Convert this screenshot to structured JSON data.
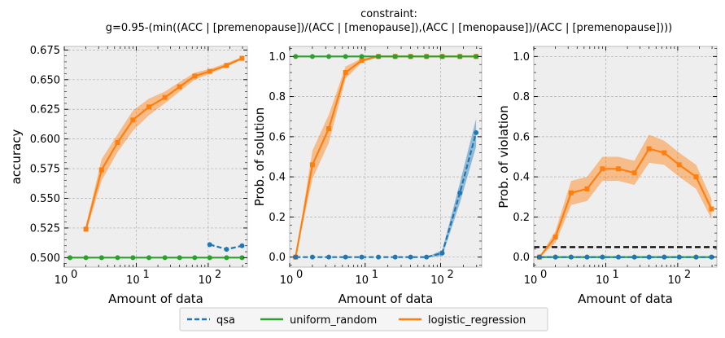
{
  "title_lines": [
    "constraint:",
    "g=0.95-(min((ACC | [premenopause])/(ACC | [menopause]),(ACC | [menopause])/(ACC | [premenopause])))"
  ],
  "colors": {
    "qsa": "#1f77b4",
    "uniform_random": "#2ca02c",
    "logistic_regression": "#ff7f0e",
    "axes_bg": "#eeeeee",
    "grid": "#b0b0b0",
    "threshold": "#000000"
  },
  "legend": [
    {
      "key": "qsa",
      "label": "qsa",
      "style": "dashed"
    },
    {
      "key": "uniform_random",
      "label": "uniform_random",
      "style": "solid"
    },
    {
      "key": "logistic_regression",
      "label": "logistic_regression",
      "style": "solid"
    }
  ],
  "chart_data": [
    {
      "type": "line",
      "xscale": "log",
      "xlim": [
        1,
        350
      ],
      "ylim": [
        0.492,
        0.678
      ],
      "xticks": [
        {
          "v": 1,
          "label": "10",
          "sup": "0"
        },
        {
          "v": 10,
          "label": "10",
          "sup": "1"
        },
        {
          "v": 100,
          "label": "10",
          "sup": "2"
        }
      ],
      "yticks": [
        0.5,
        0.525,
        0.55,
        0.575,
        0.6,
        0.625,
        0.65,
        0.675
      ],
      "ytick_labels": [
        "0.500",
        "0.525",
        "0.550",
        "0.575",
        "0.600",
        "0.625",
        "0.650",
        "0.675"
      ],
      "xlabel": "Amount of data",
      "ylabel": "accuracy",
      "grid": true,
      "series": [
        {
          "key": "uniform_random",
          "marker": "circle",
          "x": [
            1.2,
            2,
            3.3,
            5.5,
            9,
            15,
            25,
            40,
            65,
            105,
            180,
            295
          ],
          "y": [
            0.5,
            0.5,
            0.5,
            0.5,
            0.5,
            0.5,
            0.5,
            0.5,
            0.5,
            0.5,
            0.5,
            0.5
          ]
        },
        {
          "key": "logistic_regression",
          "marker": "square",
          "x": [
            2,
            3.3,
            5.5,
            9,
            15,
            25,
            40,
            65,
            105,
            180,
            295
          ],
          "y": [
            0.524,
            0.574,
            0.597,
            0.616,
            0.627,
            0.635,
            0.644,
            0.653,
            0.657,
            0.662,
            0.668
          ],
          "lo": [
            0.521,
            0.565,
            0.589,
            0.607,
            0.62,
            0.63,
            0.64,
            0.65,
            0.655,
            0.661,
            0.667
          ],
          "hi": [
            0.527,
            0.583,
            0.604,
            0.624,
            0.634,
            0.64,
            0.648,
            0.656,
            0.659,
            0.664,
            0.669
          ]
        },
        {
          "key": "qsa",
          "marker": "circle",
          "dashed": true,
          "x": [
            105,
            180,
            295
          ],
          "y": [
            0.511,
            0.507,
            0.51
          ]
        }
      ]
    },
    {
      "type": "line",
      "xscale": "log",
      "xlim": [
        1,
        350
      ],
      "ylim": [
        -0.05,
        1.05
      ],
      "xticks": [
        {
          "v": 1,
          "label": "10",
          "sup": "0"
        },
        {
          "v": 10,
          "label": "10",
          "sup": "1"
        },
        {
          "v": 100,
          "label": "10",
          "sup": "2"
        }
      ],
      "yticks": [
        0,
        0.2,
        0.4,
        0.6,
        0.8,
        1.0
      ],
      "ytick_labels": [
        "0.0",
        "0.2",
        "0.4",
        "0.6",
        "0.8",
        "1.0"
      ],
      "xlabel": "Amount of data",
      "ylabel": "Prob. of solution",
      "grid": true,
      "series": [
        {
          "key": "logistic_regression",
          "marker": "square",
          "x": [
            1.2,
            2,
            3.3,
            5.5,
            9,
            15,
            25,
            40,
            65,
            105,
            180,
            295
          ],
          "y": [
            0,
            0.46,
            0.64,
            0.92,
            0.98,
            1,
            1,
            1,
            1,
            1,
            1,
            1
          ],
          "lo": [
            0,
            0.39,
            0.57,
            0.89,
            0.97,
            1,
            1,
            1,
            1,
            1,
            1,
            1
          ],
          "hi": [
            0,
            0.53,
            0.71,
            0.95,
            0.99,
            1,
            1,
            1,
            1,
            1,
            1,
            1
          ]
        },
        {
          "key": "uniform_random",
          "marker": "circle",
          "x": [
            1.2,
            2,
            3.3,
            5.5,
            9,
            15,
            25,
            40,
            65,
            105,
            180,
            295
          ],
          "y": [
            1,
            1,
            1,
            1,
            1,
            1,
            1,
            1,
            1,
            1,
            1,
            1
          ]
        },
        {
          "key": "qsa",
          "marker": "circle",
          "dashed": true,
          "x": [
            1.2,
            2,
            3.3,
            5.5,
            9,
            15,
            25,
            40,
            65,
            105,
            180,
            295
          ],
          "y": [
            0,
            0,
            0,
            0,
            0,
            0,
            0,
            0,
            0,
            0.02,
            0.32,
            0.62
          ],
          "lo": [
            0,
            0,
            0,
            0,
            0,
            0,
            0,
            0,
            0,
            0.005,
            0.27,
            0.55
          ],
          "hi": [
            0,
            0,
            0,
            0,
            0,
            0,
            0,
            0,
            0,
            0.035,
            0.37,
            0.69
          ]
        }
      ]
    },
    {
      "type": "line",
      "xscale": "log",
      "xlim": [
        1,
        350
      ],
      "ylim": [
        -0.05,
        1.05
      ],
      "xticks": [
        {
          "v": 1,
          "label": "10",
          "sup": "0"
        },
        {
          "v": 10,
          "label": "10",
          "sup": "1"
        },
        {
          "v": 100,
          "label": "10",
          "sup": "2"
        }
      ],
      "yticks": [
        0,
        0.2,
        0.4,
        0.6,
        0.8,
        1.0
      ],
      "ytick_labels": [
        "0.0",
        "0.2",
        "0.4",
        "0.6",
        "0.8",
        "1.0"
      ],
      "xlabel": "Amount of data",
      "ylabel": "Prob. of violation",
      "grid": true,
      "threshold": 0.05,
      "series": [
        {
          "key": "logistic_regression",
          "marker": "square",
          "x": [
            1.2,
            2,
            3.3,
            5.5,
            9,
            15,
            25,
            40,
            65,
            105,
            180,
            295
          ],
          "y": [
            0,
            0.1,
            0.32,
            0.34,
            0.44,
            0.44,
            0.42,
            0.54,
            0.52,
            0.46,
            0.4,
            0.24
          ],
          "lo": [
            0,
            0.07,
            0.26,
            0.28,
            0.38,
            0.38,
            0.36,
            0.47,
            0.46,
            0.4,
            0.34,
            0.19
          ],
          "hi": [
            0,
            0.13,
            0.38,
            0.4,
            0.5,
            0.5,
            0.48,
            0.61,
            0.58,
            0.52,
            0.46,
            0.29
          ]
        },
        {
          "key": "uniform_random",
          "marker": "circle",
          "x": [
            1.2,
            2,
            3.3,
            5.5,
            9,
            15,
            25,
            40,
            65,
            105,
            180,
            295
          ],
          "y": [
            0,
            0,
            0,
            0,
            0,
            0,
            0,
            0,
            0,
            0,
            0,
            0
          ]
        },
        {
          "key": "qsa",
          "marker": "circle",
          "dashed": true,
          "x": [
            1.2,
            2,
            3.3,
            5.5,
            9,
            15,
            25,
            40,
            65,
            105,
            180,
            295
          ],
          "y": [
            0,
            0,
            0,
            0,
            0,
            0,
            0,
            0,
            0,
            0,
            0,
            0
          ]
        }
      ]
    }
  ]
}
